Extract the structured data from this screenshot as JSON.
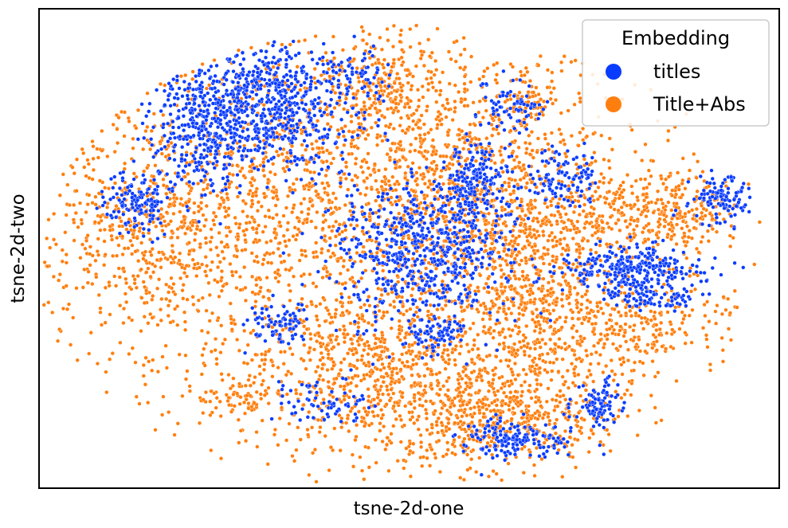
{
  "chart_data": {
    "type": "scatter",
    "title": "",
    "xlabel": "tsne-2d-one",
    "ylabel": "tsne-2d-two",
    "xticks": [],
    "yticks": [],
    "grid": false,
    "legend": {
      "title": "Embedding",
      "placement": "top-right"
    },
    "colors": {
      "titles": "#0a3cff",
      "Title+Abs": "#ff7f0e"
    },
    "series": [
      {
        "name": "titles",
        "color": "#0a3cff"
      },
      {
        "name": "Title+Abs",
        "color": "#ff7f0e"
      }
    ]
  }
}
